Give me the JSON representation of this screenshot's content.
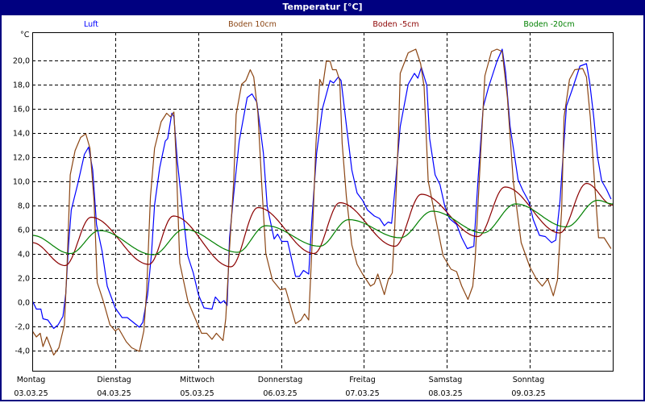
{
  "window": {
    "title": "Temperatur [°C]"
  },
  "chart_data": {
    "type": "line",
    "title": "Temperatur [°C]",
    "ylabel": "°C",
    "xlabel": "",
    "x_unit": "hours since 03.03.25 00:00",
    "xlim": [
      0,
      168
    ],
    "ylim": [
      -5.7,
      22.3
    ],
    "grid": true,
    "legend_placement": "top",
    "y_ticks": [
      {
        "value": -4,
        "label": "-4,0"
      },
      {
        "value": -2,
        "label": "-2,0"
      },
      {
        "value": 0,
        "label": "0,0"
      },
      {
        "value": 2,
        "label": "2,0"
      },
      {
        "value": 4,
        "label": "4,0"
      },
      {
        "value": 6,
        "label": "6,0"
      },
      {
        "value": 8,
        "label": "8,0"
      },
      {
        "value": 10,
        "label": "10,0"
      },
      {
        "value": 12,
        "label": "12,0"
      },
      {
        "value": 14,
        "label": "14,0"
      },
      {
        "value": 16,
        "label": "16,0"
      },
      {
        "value": 18,
        "label": "18,0"
      },
      {
        "value": 20,
        "label": "20,0"
      }
    ],
    "x_ticks": [
      {
        "value": 0,
        "day": "Montag",
        "date": "03.03.25"
      },
      {
        "value": 24,
        "day": "Dienstag",
        "date": "04.03.25"
      },
      {
        "value": 48,
        "day": "Mittwoch",
        "date": "05.03.25"
      },
      {
        "value": 72,
        "day": "Donnerstag",
        "date": "06.03.25"
      },
      {
        "value": 96,
        "day": "Freitag",
        "date": "07.03.25"
      },
      {
        "value": 120,
        "day": "Samstag",
        "date": "08.03.25"
      },
      {
        "value": 144,
        "day": "Sonntag",
        "date": "09.03.25"
      }
    ],
    "series": [
      {
        "name": "Luft",
        "color": "#0000ff",
        "smooth": false,
        "points": [
          [
            0,
            0.1
          ],
          [
            1.2,
            -0.6
          ],
          [
            2.5,
            -0.6
          ],
          [
            3.1,
            -1.4
          ],
          [
            4.5,
            -1.5
          ],
          [
            6.2,
            -2.2
          ],
          [
            7.5,
            -1.9
          ],
          [
            8.9,
            -1.2
          ],
          [
            9.7,
            0.7
          ],
          [
            10.5,
            4.7
          ],
          [
            11.3,
            7.6
          ],
          [
            13.2,
            9.8
          ],
          [
            15.1,
            12.2
          ],
          [
            16.3,
            12.8
          ],
          [
            17.5,
            10.9
          ],
          [
            18.6,
            6.4
          ],
          [
            20.2,
            4.2
          ],
          [
            21.7,
            1.3
          ],
          [
            24,
            -0.5
          ],
          [
            26,
            -1.3
          ],
          [
            27.5,
            -1.3
          ],
          [
            31,
            -2.1
          ],
          [
            32,
            -1.7
          ],
          [
            33.4,
            0.6
          ],
          [
            34.5,
            4.0
          ],
          [
            35.4,
            8.0
          ],
          [
            36.9,
            11.1
          ],
          [
            38.5,
            13.3
          ],
          [
            39.2,
            13.5
          ],
          [
            40.4,
            15.6
          ],
          [
            41,
            15.3
          ],
          [
            42,
            11.6
          ],
          [
            43.5,
            7.6
          ],
          [
            45,
            3.8
          ],
          [
            46.6,
            2.4
          ],
          [
            48.1,
            0.6
          ],
          [
            49.7,
            -0.5
          ],
          [
            52,
            -0.6
          ],
          [
            53,
            0.4
          ],
          [
            54.5,
            -0.1
          ],
          [
            55.5,
            0.1
          ],
          [
            56.4,
            -0.3
          ],
          [
            57.1,
            5.3
          ],
          [
            58.3,
            8.9
          ],
          [
            59.9,
            13.3
          ],
          [
            62.2,
            16.9
          ],
          [
            63.6,
            17.2
          ],
          [
            65,
            16.5
          ],
          [
            66.9,
            12.3
          ],
          [
            68,
            7.9
          ],
          [
            70,
            5.2
          ],
          [
            71,
            5.6
          ],
          [
            72.2,
            5.0
          ],
          [
            73.9,
            5.0
          ],
          [
            76.2,
            2.1
          ],
          [
            77.3,
            2.1
          ],
          [
            78.5,
            2.6
          ],
          [
            80,
            2.3
          ],
          [
            80.9,
            6.7
          ],
          [
            82.3,
            12.3
          ],
          [
            84,
            16
          ],
          [
            86.2,
            18.3
          ],
          [
            87.2,
            18.1
          ],
          [
            88.6,
            18.6
          ],
          [
            89.4,
            18.3
          ],
          [
            91,
            14.4
          ],
          [
            92.5,
            10.9
          ],
          [
            94,
            9
          ],
          [
            95.6,
            8.4
          ],
          [
            97,
            7.6
          ],
          [
            99,
            7.1
          ],
          [
            100.5,
            6.9
          ],
          [
            101.9,
            6.3
          ],
          [
            103,
            6.6
          ],
          [
            104,
            6.5
          ],
          [
            105,
            9.4
          ],
          [
            106.5,
            14.5
          ],
          [
            108.8,
            18.0
          ],
          [
            110.6,
            18.9
          ],
          [
            111.6,
            18.5
          ],
          [
            112.6,
            19.4
          ],
          [
            114.2,
            17.9
          ],
          [
            115,
            13.5
          ],
          [
            116.6,
            10.5
          ],
          [
            118,
            9.7
          ],
          [
            119.4,
            7.9
          ],
          [
            120.7,
            6.9
          ],
          [
            122.8,
            6.4
          ],
          [
            124.3,
            5.3
          ],
          [
            125.9,
            4.4
          ],
          [
            127.8,
            4.6
          ],
          [
            129,
            10.1
          ],
          [
            130.5,
            16.1
          ],
          [
            132,
            17.7
          ],
          [
            134.5,
            19.9
          ],
          [
            136,
            20.9
          ],
          [
            137,
            19
          ],
          [
            138.3,
            14.5
          ],
          [
            140.6,
            10.1
          ],
          [
            142,
            9.2
          ],
          [
            143.7,
            8.3
          ],
          [
            145,
            6.8
          ],
          [
            146.8,
            5.5
          ],
          [
            148.5,
            5.4
          ],
          [
            150.3,
            4.9
          ],
          [
            151.5,
            5.1
          ],
          [
            152.7,
            8.2
          ],
          [
            154.6,
            16.2
          ],
          [
            156.2,
            17.5
          ],
          [
            158.5,
            19.5
          ],
          [
            160.4,
            19.7
          ],
          [
            161.3,
            18.2
          ],
          [
            162.5,
            15.3
          ],
          [
            163.6,
            12
          ],
          [
            164.8,
            10
          ],
          [
            166.2,
            9.3
          ],
          [
            167.5,
            8.5
          ]
        ]
      },
      {
        "name": "Boden 10cm",
        "color": "#8b4513",
        "smooth": false,
        "points": [
          [
            0,
            -2.4
          ],
          [
            1.2,
            -2.9
          ],
          [
            2.3,
            -2.6
          ],
          [
            3.1,
            -3.7
          ],
          [
            4.2,
            -2.9
          ],
          [
            6.2,
            -4.4
          ],
          [
            7.7,
            -3.8
          ],
          [
            9.3,
            -1.9
          ],
          [
            10.1,
            3.2
          ],
          [
            11,
            10.5
          ],
          [
            12.4,
            12.5
          ],
          [
            14,
            13.6
          ],
          [
            15.5,
            13.9
          ],
          [
            16.7,
            12.7
          ],
          [
            17.9,
            8.3
          ],
          [
            18.8,
            1.6
          ],
          [
            20.5,
            0.1
          ],
          [
            22.5,
            -1.9
          ],
          [
            24,
            -2.4
          ],
          [
            25,
            -2.2
          ],
          [
            27.2,
            -3.3
          ],
          [
            28.8,
            -3.8
          ],
          [
            31,
            -4.1
          ],
          [
            32.3,
            -2.4
          ],
          [
            33.1,
            0.9
          ],
          [
            34.2,
            8.7
          ],
          [
            35.4,
            12.7
          ],
          [
            37.3,
            14.9
          ],
          [
            38.9,
            15.6
          ],
          [
            40,
            15.3
          ],
          [
            41,
            15.7
          ],
          [
            41.6,
            12.1
          ],
          [
            42.7,
            3.2
          ],
          [
            45,
            0.1
          ],
          [
            46.6,
            -1.0
          ],
          [
            49,
            -2.6
          ],
          [
            50.5,
            -2.6
          ],
          [
            52,
            -3.1
          ],
          [
            53.3,
            -2.6
          ],
          [
            55.2,
            -3.2
          ],
          [
            56,
            -1.4
          ],
          [
            57.1,
            4.4
          ],
          [
            58.3,
            10
          ],
          [
            59,
            15.5
          ],
          [
            60.6,
            18
          ],
          [
            61.8,
            18.3
          ],
          [
            63.1,
            19.2
          ],
          [
            64.1,
            18.6
          ],
          [
            65.3,
            15.6
          ],
          [
            66.5,
            9.3
          ],
          [
            67.6,
            4
          ],
          [
            69.5,
            1.8
          ],
          [
            71.8,
            1.0
          ],
          [
            73.3,
            1.1
          ],
          [
            74.6,
            -0.2
          ],
          [
            76.2,
            -1.8
          ],
          [
            77.8,
            -1.5
          ],
          [
            78.8,
            -1.0
          ],
          [
            80,
            -1.5
          ],
          [
            80.9,
            4.2
          ],
          [
            82.1,
            13.1
          ],
          [
            83.2,
            18.4
          ],
          [
            84.1,
            17.9
          ],
          [
            85.1,
            19.9
          ],
          [
            86.2,
            19.9
          ],
          [
            86.9,
            19.2
          ],
          [
            88,
            19.2
          ],
          [
            89,
            18.3
          ],
          [
            89.7,
            13.1
          ],
          [
            90.9,
            8.7
          ],
          [
            92.5,
            4.7
          ],
          [
            94,
            3.1
          ],
          [
            95.6,
            2.3
          ],
          [
            97.9,
            1.3
          ],
          [
            99,
            1.5
          ],
          [
            100,
            2.3
          ],
          [
            101.9,
            0.6
          ],
          [
            103,
            1.8
          ],
          [
            104.2,
            2.4
          ],
          [
            104.9,
            6.2
          ],
          [
            106,
            14
          ],
          [
            106.5,
            18.9
          ],
          [
            108.8,
            20.6
          ],
          [
            111,
            20.9
          ],
          [
            112.4,
            19.7
          ],
          [
            113.4,
            17.8
          ],
          [
            114.6,
            10
          ],
          [
            116.6,
            7.1
          ],
          [
            118.9,
            3.8
          ],
          [
            121.2,
            2.7
          ],
          [
            122.8,
            2.5
          ],
          [
            124.3,
            1.3
          ],
          [
            126.1,
            0.2
          ],
          [
            127.5,
            1.3
          ],
          [
            128.2,
            3.6
          ],
          [
            129.8,
            12.4
          ],
          [
            131,
            18.7
          ],
          [
            132.9,
            20.7
          ],
          [
            134.5,
            20.9
          ],
          [
            136,
            20.7
          ],
          [
            137.5,
            16.9
          ],
          [
            139.2,
            10
          ],
          [
            141.5,
            4.9
          ],
          [
            144,
            2.9
          ],
          [
            146.1,
            1.8
          ],
          [
            147.6,
            1.3
          ],
          [
            149.2,
            1.9
          ],
          [
            150.8,
            0.5
          ],
          [
            152,
            1.8
          ],
          [
            153.2,
            7.6
          ],
          [
            153.9,
            15.3
          ],
          [
            155.5,
            18.4
          ],
          [
            157,
            19.2
          ],
          [
            159.3,
            19.3
          ],
          [
            160.4,
            18.6
          ],
          [
            161.5,
            15.3
          ],
          [
            162.7,
            10
          ],
          [
            163.9,
            5.3
          ],
          [
            165.5,
            5.3
          ],
          [
            167.5,
            4.4
          ]
        ]
      },
      {
        "name": "Boden -5cm",
        "color": "#8b0000",
        "smooth": true,
        "points": [
          [
            0,
            4.9
          ],
          [
            9.5,
            3.0
          ],
          [
            17,
            7.0
          ],
          [
            33.8,
            3.1
          ],
          [
            40.8,
            7.1
          ],
          [
            57.5,
            2.9
          ],
          [
            65.3,
            7.8
          ],
          [
            81.6,
            4.0
          ],
          [
            89,
            8.2
          ],
          [
            105,
            4.6
          ],
          [
            112.6,
            8.9
          ],
          [
            129,
            5.4
          ],
          [
            136.8,
            9.5
          ],
          [
            152.7,
            5.7
          ],
          [
            160.4,
            9.8
          ],
          [
            168,
            8.0
          ]
        ]
      },
      {
        "name": "Boden -20cm",
        "color": "#008000",
        "smooth": true,
        "points": [
          [
            0,
            5.5
          ],
          [
            11,
            4.0
          ],
          [
            19.5,
            5.9
          ],
          [
            35,
            3.9
          ],
          [
            44,
            6.0
          ],
          [
            59.4,
            4.1
          ],
          [
            67.6,
            6.3
          ],
          [
            83.2,
            4.6
          ],
          [
            91.6,
            6.8
          ],
          [
            106.5,
            5.3
          ],
          [
            115.8,
            7.5
          ],
          [
            130.5,
            5.7
          ],
          [
            139.9,
            8.1
          ],
          [
            154.6,
            6.2
          ],
          [
            163.6,
            8.4
          ],
          [
            168,
            8.1
          ]
        ]
      }
    ]
  }
}
